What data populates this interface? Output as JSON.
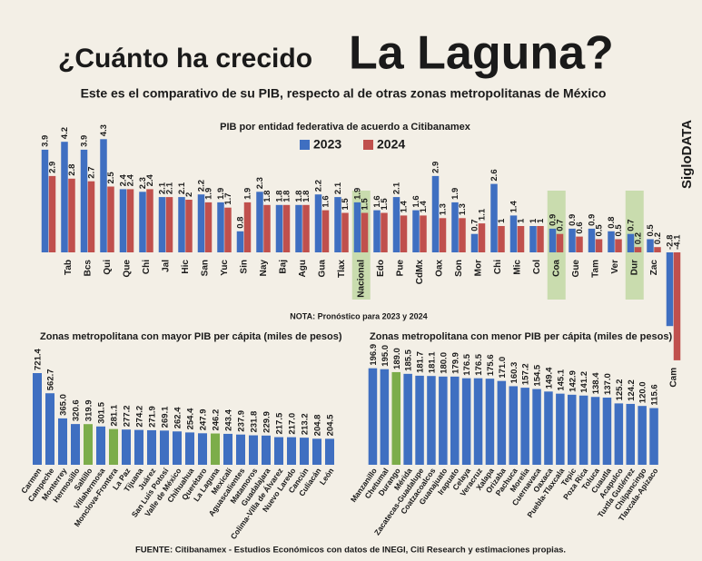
{
  "header": {
    "title_a": "¿Cuánto ha crecido",
    "title_b": "La Laguna?",
    "subtitle": "Este es el comparativo de su PIB, respecto al de otras zonas metropolitanas de México",
    "brand": "SigloDATA",
    "note": "NOTA: Pronóstico para 2023 y 2024",
    "source": "FUENTE: Citibanamex - Estudios Económicos con datos de INEGI, Citi Research y estimaciones propias."
  },
  "chart_data": [
    {
      "type": "grouped_bar",
      "title": "PIB por entidad federativa de acuerdo a Citibanamex",
      "categories": [
        null,
        "Tab",
        "Bcs",
        "Qui",
        "Que",
        "Chi",
        "Jal",
        "Hic",
        "San",
        "Yuc",
        "Sin",
        "Nay",
        "Baj",
        "Agu",
        "Gua",
        "Tlax",
        "Nacional",
        "Edo",
        "Pue",
        "CdMx",
        "Oax",
        "Son",
        "Mor",
        "Chi",
        "Mic",
        "Col",
        "Coa",
        "Gue",
        "Tam",
        "Ver",
        "Dur",
        "Zac",
        "Cam"
      ],
      "series": [
        {
          "name": "2023",
          "color": "#3f6fc1",
          "values": [
            3.9,
            4.2,
            3.9,
            4.3,
            2.4,
            2.3,
            2.1,
            2.1,
            2.2,
            1.9,
            0.8,
            2.3,
            1.8,
            1.8,
            2.2,
            2.1,
            1.9,
            1.6,
            2.1,
            1.6,
            2.9,
            1.9,
            0.7,
            2.6,
            1.4,
            1.0,
            0.9,
            0.9,
            0.9,
            0.8,
            0.7,
            0.5,
            -2.8
          ]
        },
        {
          "name": "2024",
          "color": "#c0504d",
          "values": [
            2.9,
            2.8,
            2.7,
            2.5,
            2.4,
            2.4,
            2.1,
            2.0,
            1.9,
            1.7,
            1.9,
            1.8,
            1.8,
            1.8,
            1.6,
            1.5,
            1.5,
            1.5,
            1.4,
            1.4,
            1.3,
            1.3,
            1.1,
            1.0,
            1.0,
            1.0,
            0.7,
            0.6,
            0.5,
            0.5,
            0.2,
            0.2,
            -4.1
          ]
        }
      ],
      "highlight": [
        "Nacional",
        "Coa",
        "Dur"
      ],
      "highlight_color": "#c9dcae"
    },
    {
      "type": "bar",
      "title": "Zonas metropolitana con mayor PIB per cápita (miles de pesos)",
      "color": "#3f6fc1",
      "highlight_color": "#7cad4a",
      "categories": [
        "Carmen",
        "Campeche",
        "Monterrey",
        "Hermosillo",
        "Saltillo",
        "Villahermosa",
        "Monclova-Frontera",
        "La Paz",
        "Tijuana",
        "Juárez",
        "San Luis Potosí",
        "Valle de México",
        "Chihuahua",
        "Querétaro",
        "La Laguna",
        "Mexicali",
        "Aguascalientes",
        "Matamoros",
        "Guadalajara",
        "Colima-Villa de Álvarez",
        "Nuevo Laredo",
        "Cancún",
        "Culiacán",
        "León"
      ],
      "values": [
        721.4,
        562.7,
        365.0,
        320.6,
        319.9,
        301.5,
        281.1,
        277.2,
        274.2,
        271.9,
        269.1,
        262.4,
        254.4,
        247.9,
        246.2,
        243.4,
        237.9,
        231.8,
        229.9,
        217.5,
        217.0,
        213.2,
        204.8,
        204.5
      ],
      "value_labels": [
        "721.4",
        "562.7",
        "365.0",
        "320.6",
        "319.9",
        "301.5",
        "281.1",
        "277.2",
        "274.2",
        "271.9",
        "269.1",
        "262.4",
        "254.4",
        "247.9",
        "246.2",
        "243.4",
        "237.9",
        "231.8",
        "229.9",
        "217.5",
        "217.0",
        "213.2",
        "204.8",
        "204.5"
      ],
      "highlight": [
        "Saltillo",
        "Monclova-Frontera",
        "La Laguna"
      ]
    },
    {
      "type": "bar",
      "title": "Zonas metropolitana con menor PIB per cápita (miles de pesos)",
      "color": "#3f6fc1",
      "highlight_color": "#7cad4a",
      "categories": [
        "Manzanillo",
        "Chetumal",
        "Durango",
        "Mérida",
        "Zacatecas-Guadalupe",
        "Coatzacoalcos",
        "Guanajuato",
        "Irapuato",
        "Celaya",
        "Veracruz",
        "Xalapa",
        "Orizaba",
        "Pachuca",
        "Morelia",
        "Cuernavaca",
        "Oaxaca",
        "Puebla-Tlaxcala",
        "Tepic",
        "Poza Rica",
        "Toluca",
        "Cuautla",
        "Acapulco",
        "Tuxtla Gutiérrez",
        "Chilpancingo",
        "Tlaxcala-Apizaco"
      ],
      "values": [
        196.9,
        195.0,
        189.0,
        185.5,
        181.7,
        181.1,
        180.0,
        179.9,
        176.5,
        176.5,
        175.6,
        171.0,
        160.3,
        157.2,
        154.5,
        149.4,
        145.1,
        142.9,
        141.2,
        138.4,
        137.0,
        125.2,
        124.2,
        120.0,
        115.6
      ],
      "value_labels": [
        "196.9",
        "195.0",
        "189.0",
        "185.5",
        "181.7",
        "181.1",
        "180.0",
        "179.9",
        "176.5",
        "176.5",
        "175.6",
        "171.0",
        "160.3",
        "157.2",
        "154.5",
        "149.4",
        "145.1",
        "142.9",
        "141.2",
        "138.4",
        "137.0",
        "125.2",
        "124.2",
        "120.0",
        "115.6"
      ],
      "highlight": [
        "Durango"
      ]
    }
  ]
}
